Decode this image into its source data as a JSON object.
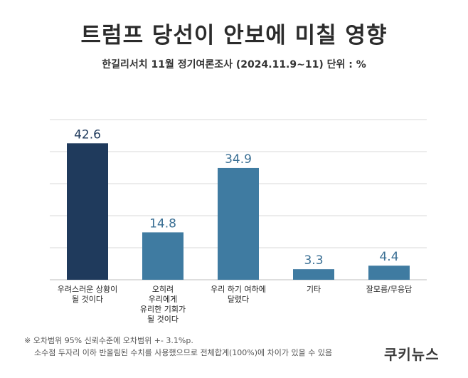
{
  "title": "트럼프 당선이 안보에 미칠 영향",
  "subtitle": "한길리서치 11월 정기여론조사 (2024.11.9~11) 단위 : %",
  "chart_data": {
    "type": "bar",
    "categories": [
      [
        "우려스러운 상황이",
        "될 것이다"
      ],
      [
        "오히려",
        "우리에게",
        "유리한 기회가",
        "될 것이다"
      ],
      [
        "우리 하기 여하에",
        "달렸다"
      ],
      [
        "기타"
      ],
      [
        "잘모름/무응답"
      ]
    ],
    "values": [
      42.6,
      14.8,
      34.9,
      3.3,
      4.4
    ],
    "value_labels": [
      "42.6",
      "14.8",
      "34.9",
      "3.3",
      "4.4"
    ],
    "bar_colors": [
      "#1f3a5c",
      "#3f7ba1",
      "#3f7ba1",
      "#3f7ba1",
      "#3f7ba1"
    ],
    "value_colors": [
      "#1f3a5c",
      "#3a6f94",
      "#3a6f94",
      "#3a6f94",
      "#3a6f94"
    ],
    "ylim": [
      0,
      50
    ],
    "grid": true,
    "grid_color": "#d9d9d9"
  },
  "footnote": {
    "line1": "※ 오차범위 95% 신뢰수준에 오차범위 +- 3.1%p.",
    "line2": "소수점 두자리 이하 반올림된 수치를 사용했으므로 전체합계(100%)에 차이가 있을 수 있음"
  },
  "brand": "쿠키뉴스"
}
